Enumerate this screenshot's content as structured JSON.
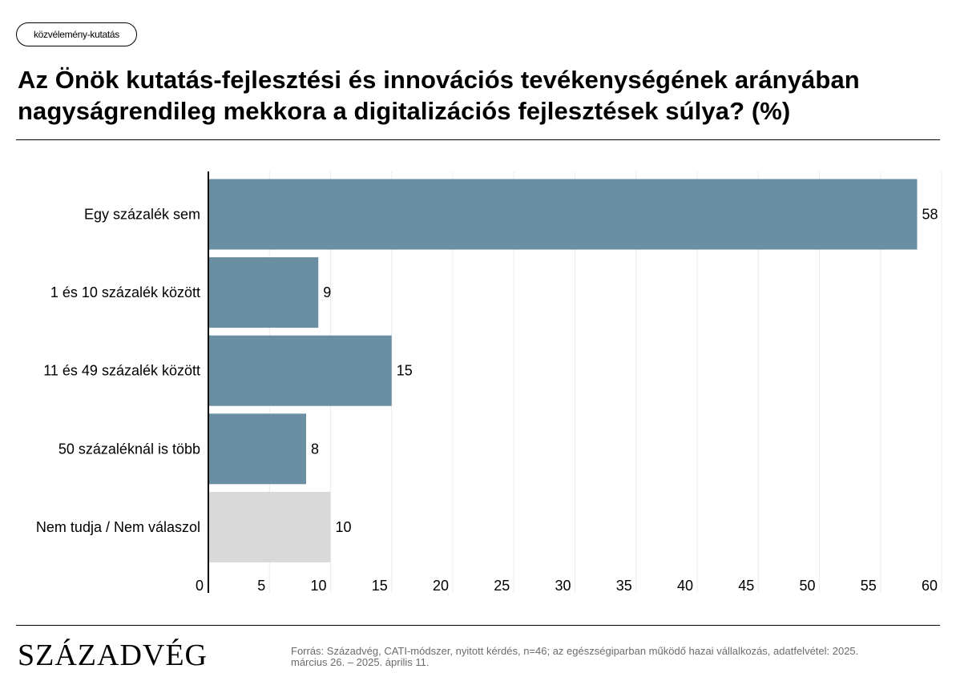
{
  "header": {
    "badge": "közvélemény-kutatás",
    "title": "Az Önök kutatás-fejlesztési és innovációs tevékenységének arányában nagyságrendileg mekkora a digitalizációs fejlesztések súlya? (%)"
  },
  "chart_data": {
    "type": "bar",
    "orientation": "horizontal",
    "categories": [
      "Egy százalék sem",
      "1 és 10 százalék között",
      "11 és 49 százalék között",
      "50 százaléknál is több",
      "Nem tudja / Nem válaszol"
    ],
    "values": [
      58,
      9,
      15,
      8,
      10
    ],
    "data_labels": [
      "58",
      "9",
      "15",
      "8",
      "10"
    ],
    "bar_colors": [
      "#6a8fa3",
      "#6a8fa3",
      "#6a8fa3",
      "#6a8fa3",
      "#d9d9d9"
    ],
    "xlim": [
      0,
      60
    ],
    "xticks": [
      0,
      5,
      10,
      15,
      20,
      25,
      30,
      35,
      40,
      45,
      50,
      55,
      60
    ],
    "grid": true
  },
  "footer": {
    "logo": "Századvég",
    "source": "Forrás: Századvég, CATI-módszer, nyitott kérdés, n=46; az egészségiparban működő hazai vállalkozás, adatfelvétel: 2025. március 26. – 2025. április 11."
  }
}
